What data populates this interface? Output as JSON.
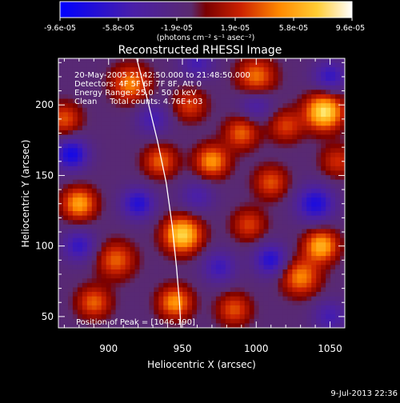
{
  "chart_data": {
    "type": "heatmap",
    "title": "Reconstructed RHESSI Image",
    "xlabel": "Heliocentric X (arcsec)",
    "ylabel": "Heliocentric Y (arcsec)",
    "xlim": [
      866,
      1060
    ],
    "ylim": [
      42,
      233
    ],
    "x_ticks": [
      900,
      950,
      1000,
      1050
    ],
    "y_ticks": [
      50,
      100,
      150,
      200
    ],
    "colorbar": {
      "min": -9.6e-05,
      "max": 9.6e-05,
      "tick_labels": [
        "-9.6e-05",
        "-5.8e-05",
        "-1.9e-05",
        "1.9e-05",
        "5.8e-05",
        "9.6e-05"
      ],
      "units_label": "(photons cm⁻² s⁻¹ asec⁻²)",
      "colormap": [
        "#0000ff",
        "#4a1fa8",
        "#5a2a6e",
        "#7a0000",
        "#cc2200",
        "#ff8800",
        "#ffcc33",
        "#ffffaa",
        "#ffffff"
      ]
    },
    "annotations": [
      "20-May-2005 21:42:50.000 to 21:48:50.000",
      "Detectors: 4F 5F 6F 7F 8F, Att 0",
      "Energy Range: 25.0 - 50.0 keV",
      "Clean     Total counts: 4.76E+03"
    ],
    "peak_label": "Position of Peak = [1046,190]",
    "peak": [
      1046,
      190
    ],
    "sources": [
      {
        "x": 1046,
        "y": 195,
        "amp": 1.0,
        "sigma": 9
      },
      {
        "x": 950,
        "y": 108,
        "amp": 0.95,
        "sigma": 9
      },
      {
        "x": 1044,
        "y": 100,
        "amp": 0.8,
        "sigma": 8
      },
      {
        "x": 880,
        "y": 130,
        "amp": 0.75,
        "sigma": 8
      },
      {
        "x": 1030,
        "y": 78,
        "amp": 0.65,
        "sigma": 9
      },
      {
        "x": 970,
        "y": 160,
        "amp": 0.7,
        "sigma": 8
      },
      {
        "x": 915,
        "y": 215,
        "amp": 0.65,
        "sigma": 9
      },
      {
        "x": 1000,
        "y": 220,
        "amp": 0.6,
        "sigma": 9
      },
      {
        "x": 935,
        "y": 160,
        "amp": 0.55,
        "sigma": 8
      },
      {
        "x": 990,
        "y": 180,
        "amp": 0.55,
        "sigma": 8
      },
      {
        "x": 905,
        "y": 90,
        "amp": 0.55,
        "sigma": 9
      },
      {
        "x": 890,
        "y": 60,
        "amp": 0.55,
        "sigma": 8
      },
      {
        "x": 945,
        "y": 60,
        "amp": 0.7,
        "sigma": 8
      },
      {
        "x": 985,
        "y": 55,
        "amp": 0.5,
        "sigma": 8
      },
      {
        "x": 1010,
        "y": 145,
        "amp": 0.5,
        "sigma": 8
      },
      {
        "x": 1020,
        "y": 185,
        "amp": 0.45,
        "sigma": 8
      },
      {
        "x": 955,
        "y": 200,
        "amp": 0.45,
        "sigma": 8
      },
      {
        "x": 870,
        "y": 190,
        "amp": 0.5,
        "sigma": 8
      },
      {
        "x": 995,
        "y": 115,
        "amp": 0.45,
        "sigma": 8
      },
      {
        "x": 1055,
        "y": 160,
        "amp": 0.4,
        "sigma": 8
      },
      {
        "x": 875,
        "y": 165,
        "amp": -0.7,
        "sigma": 8
      },
      {
        "x": 920,
        "y": 130,
        "amp": -0.6,
        "sigma": 8
      },
      {
        "x": 1040,
        "y": 130,
        "amp": -0.65,
        "sigma": 9
      },
      {
        "x": 1050,
        "y": 220,
        "amp": -0.5,
        "sigma": 8
      },
      {
        "x": 960,
        "y": 230,
        "amp": -0.4,
        "sigma": 8
      },
      {
        "x": 1010,
        "y": 90,
        "amp": -0.6,
        "sigma": 8
      },
      {
        "x": 880,
        "y": 100,
        "amp": -0.5,
        "sigma": 8
      },
      {
        "x": 975,
        "y": 85,
        "amp": -0.45,
        "sigma": 8
      },
      {
        "x": 1050,
        "y": 50,
        "amp": -0.4,
        "sigma": 8
      },
      {
        "x": 930,
        "y": 190,
        "amp": -0.4,
        "sigma": 8
      },
      {
        "x": 1000,
        "y": 200,
        "amp": -0.35,
        "sigma": 8
      },
      {
        "x": 960,
        "y": 135,
        "amp": -0.35,
        "sigma": 8
      }
    ],
    "limb_curve": [
      [
        919,
        233
      ],
      [
        926,
        205
      ],
      [
        933,
        175
      ],
      [
        939,
        145
      ],
      [
        943,
        115
      ],
      [
        946,
        85
      ],
      [
        948,
        60
      ],
      [
        949,
        42
      ]
    ]
  },
  "footer": {
    "timestamp": "9-Jul-2013 22:36"
  }
}
